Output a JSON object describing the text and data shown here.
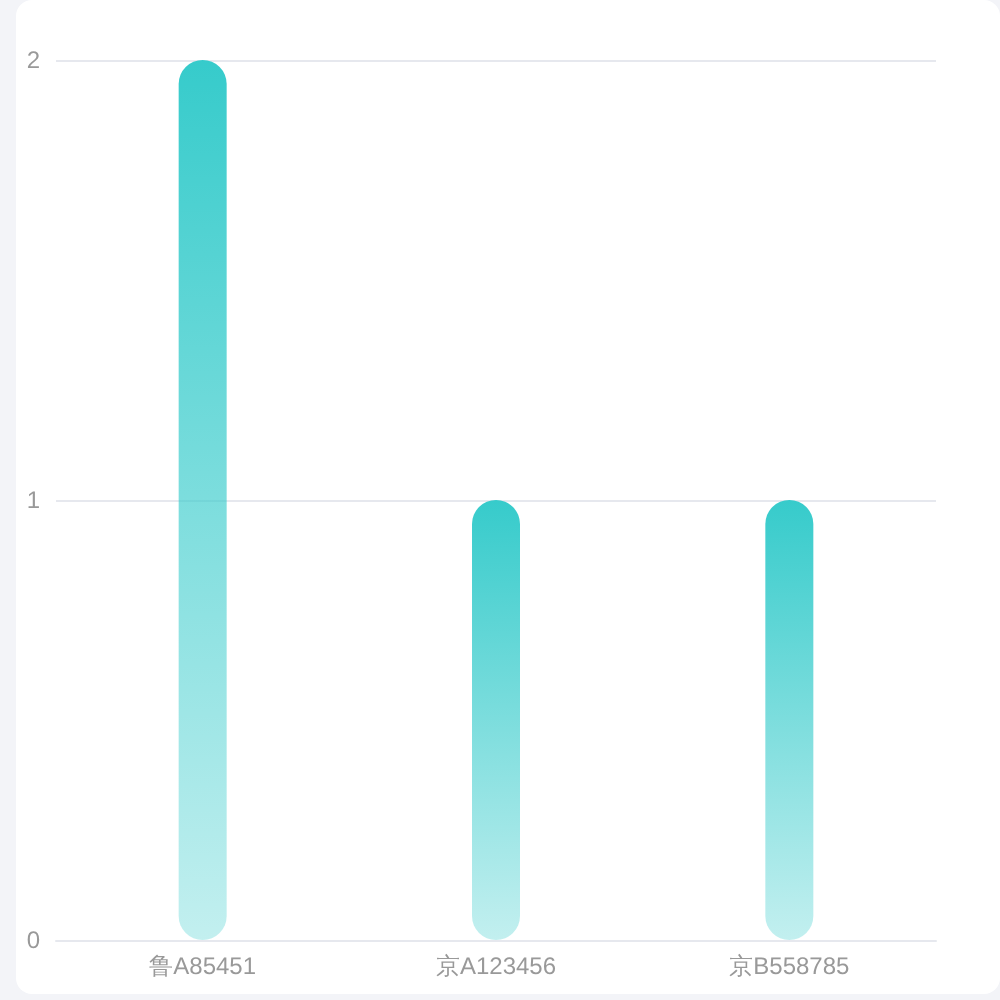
{
  "chart_data": {
    "type": "bar",
    "categories": [
      "鲁A85451",
      "京A123456",
      "京B558785"
    ],
    "values": [
      2,
      1,
      1
    ],
    "color": "#36cbcb",
    "ylim": [
      0,
      2
    ],
    "yticks": [
      0,
      1,
      2
    ],
    "grid": "y"
  }
}
